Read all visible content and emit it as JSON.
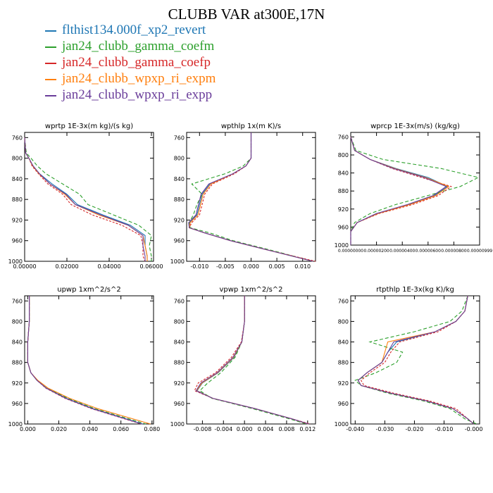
{
  "title": "CLUBB VAR at300E,17N",
  "legend": [
    {
      "label": "flthist134.000f_xp2_revert",
      "color": "#1f77b4"
    },
    {
      "label": "jan24_clubb_gamma_coefm",
      "color": "#2ca02c"
    },
    {
      "label": "jan24_clubb_gamma_coefp",
      "color": "#d62728"
    },
    {
      "label": "jan24_clubb_wpxp_ri_expm",
      "color": "#ff7f0e"
    },
    {
      "label": "jan24_clubb_wpxp_ri_expp",
      "color": "#6a3d9a"
    }
  ],
  "chart_data": [
    {
      "type": "line",
      "title": "wprtp   1E-3x(m kg)/(s kg)",
      "xlim": [
        0,
        0.061
      ],
      "ylim": [
        1000,
        750
      ],
      "xticks": [
        0,
        0.02,
        0.04,
        0.06
      ],
      "xtick_labels": [
        "0.00000",
        "0.02000",
        "0.04000",
        "0.06000"
      ],
      "yticks": [
        760,
        800,
        840,
        880,
        920,
        960,
        1000
      ],
      "ytick_labels": [
        "760",
        "800",
        "840",
        "880",
        "920",
        "960",
        "1000"
      ],
      "y": [
        760,
        790,
        800,
        815,
        830,
        850,
        870,
        890,
        910,
        930,
        950,
        970,
        990,
        1000
      ],
      "series": [
        {
          "values": [
            0,
            0.0005,
            0.002,
            0.004,
            0.007,
            0.013,
            0.02,
            0.025,
            0.037,
            0.05,
            0.057,
            0.057,
            0.058,
            0.058
          ]
        },
        {
          "values": [
            0,
            0.0008,
            0.003,
            0.006,
            0.01,
            0.018,
            0.026,
            0.03,
            0.042,
            0.054,
            0.06,
            0.059,
            0.06,
            0.06
          ]
        },
        {
          "values": [
            0,
            0.0005,
            0.002,
            0.0035,
            0.0065,
            0.011,
            0.018,
            0.022,
            0.032,
            0.046,
            0.055,
            0.056,
            0.056,
            0.057
          ]
        },
        {
          "values": [
            0,
            0.0005,
            0.002,
            0.0038,
            0.0068,
            0.012,
            0.019,
            0.024,
            0.035,
            0.049,
            0.056,
            0.057,
            0.058,
            0.058
          ]
        },
        {
          "values": [
            0,
            0.0005,
            0.002,
            0.004,
            0.007,
            0.012,
            0.0195,
            0.024,
            0.036,
            0.049,
            0.056,
            0.056,
            0.057,
            0.057
          ]
        }
      ]
    },
    {
      "type": "line",
      "title": "wpthlp   1x(m K)/s",
      "xlim": [
        -0.0125,
        0.0125
      ],
      "ylim": [
        1000,
        750
      ],
      "xticks": [
        -0.01,
        -0.005,
        0,
        0.005,
        0.01
      ],
      "xtick_labels": [
        "-0.010",
        "-0.005",
        "0.000",
        "0.005",
        "0.010"
      ],
      "yticks": [
        760,
        800,
        840,
        880,
        920,
        960,
        1000
      ],
      "ytick_labels": [
        "760",
        "800",
        "840",
        "880",
        "920",
        "960",
        "1000"
      ],
      "y": [
        750,
        800,
        815,
        830,
        850,
        870,
        890,
        910,
        925,
        935,
        945,
        960,
        980,
        1000
      ],
      "series": [
        {
          "values": [
            0,
            0,
            -0.001,
            -0.0035,
            -0.008,
            -0.0095,
            -0.01,
            -0.0105,
            -0.012,
            -0.012,
            -0.009,
            -0.004,
            0.004,
            0.012
          ]
        },
        {
          "values": [
            0,
            0,
            -0.0015,
            -0.005,
            -0.0115,
            -0.0095,
            -0.0105,
            -0.0112,
            -0.012,
            -0.0118,
            -0.008,
            -0.0035,
            0.0045,
            0.012
          ]
        },
        {
          "values": [
            0,
            0,
            -0.001,
            -0.0032,
            -0.0075,
            -0.009,
            -0.0095,
            -0.01,
            -0.0115,
            -0.012,
            -0.009,
            -0.004,
            0.004,
            0.0125
          ]
        },
        {
          "values": [
            0,
            0,
            -0.001,
            -0.0035,
            -0.0078,
            -0.0093,
            -0.0098,
            -0.0103,
            -0.0118,
            -0.012,
            -0.009,
            -0.004,
            0.004,
            0.012
          ]
        },
        {
          "values": [
            0,
            0,
            -0.001,
            -0.0035,
            -0.0082,
            -0.0097,
            -0.0102,
            -0.0107,
            -0.0121,
            -0.012,
            -0.009,
            -0.004,
            0.004,
            0.012
          ]
        }
      ]
    },
    {
      "type": "line",
      "title": "wprcp   1E-3x(m/s) (kg/kg)",
      "xlim": [
        0,
        1e-05
      ],
      "ylim": [
        1000,
        750
      ],
      "xtick_labels": [
        "0.00000000",
        "0.00000200",
        "0.00000400",
        "0.00000600",
        "0.00000800",
        "0.00000999"
      ],
      "yticks": [
        760,
        800,
        840,
        880,
        920,
        960,
        1000
      ],
      "ytick_labels": [
        "760",
        "800",
        "840",
        "880",
        "920",
        "960",
        "1000"
      ],
      "y": [
        760,
        790,
        810,
        830,
        850,
        870,
        890,
        910,
        930,
        950,
        970,
        1000
      ],
      "series": [
        {
          "values": [
            0,
            3e-07,
            1.5e-06,
            3.5e-06,
            6e-06,
            7.5e-06,
            6.5e-06,
            4.5e-06,
            2e-06,
            5e-07,
            0,
            0
          ]
        },
        {
          "values": [
            0,
            4e-07,
            2.5e-06,
            7e-06,
            9.9e-06,
            8.5e-06,
            6e-06,
            3.5e-06,
            1.5e-06,
            3e-07,
            0,
            0
          ]
        },
        {
          "values": [
            0,
            3e-07,
            1.5e-06,
            3.2e-06,
            5.5e-06,
            7.8e-06,
            6.8e-06,
            4.8e-06,
            2.2e-06,
            5e-07,
            0,
            0
          ]
        },
        {
          "values": [
            0,
            3e-07,
            1.5e-06,
            3.4e-06,
            5.8e-06,
            7.6e-06,
            6.6e-06,
            4.6e-06,
            2.1e-06,
            5e-07,
            0,
            0
          ]
        },
        {
          "values": [
            0,
            3e-07,
            1.5e-06,
            3.3e-06,
            5.7e-06,
            7.4e-06,
            6.4e-06,
            4.4e-06,
            2e-06,
            5e-07,
            0,
            0
          ]
        }
      ]
    },
    {
      "type": "line",
      "title": "upwp   1xm^2/s^2",
      "xlim": [
        -0.002,
        0.081
      ],
      "ylim": [
        1000,
        750
      ],
      "xticks": [
        0,
        0.02,
        0.04,
        0.06,
        0.08
      ],
      "xtick_labels": [
        "0.000",
        "0.020",
        "0.040",
        "0.060",
        "0.080"
      ],
      "yticks": [
        760,
        800,
        840,
        880,
        920,
        960,
        1000
      ],
      "ytick_labels": [
        "760",
        "800",
        "840",
        "880",
        "920",
        "960",
        "1000"
      ],
      "y": [
        750,
        800,
        840,
        880,
        900,
        915,
        930,
        950,
        970,
        1000
      ],
      "series": [
        {
          "values": [
            0.001,
            0.001,
            0,
            0,
            0.002,
            0.006,
            0.012,
            0.025,
            0.042,
            0.074
          ]
        },
        {
          "values": [
            0.001,
            0.001,
            0,
            0,
            0.002,
            0.006,
            0.012,
            0.026,
            0.043,
            0.076
          ]
        },
        {
          "values": [
            0.001,
            0.001,
            0,
            0,
            0.002,
            0.006,
            0.0115,
            0.024,
            0.041,
            0.073
          ]
        },
        {
          "values": [
            0.001,
            0.001,
            0,
            0,
            0.002,
            0.0065,
            0.013,
            0.027,
            0.045,
            0.079
          ]
        },
        {
          "values": [
            0.001,
            0.001,
            0,
            0,
            0.002,
            0.006,
            0.0118,
            0.0245,
            0.0415,
            0.0735
          ]
        }
      ]
    },
    {
      "type": "line",
      "title": "vpwp   1xm^2/s^2",
      "xlim": [
        -0.011,
        0.0135
      ],
      "ylim": [
        1000,
        750
      ],
      "xticks": [
        -0.008,
        -0.004,
        0,
        0.004,
        0.008,
        0.012
      ],
      "xtick_labels": [
        "-0.008",
        "-0.004",
        "0.000",
        "0.004",
        "0.008",
        "0.012"
      ],
      "yticks": [
        760,
        800,
        840,
        880,
        920,
        960,
        1000
      ],
      "ytick_labels": [
        "760",
        "800",
        "840",
        "880",
        "920",
        "960",
        "1000"
      ],
      "y": [
        750,
        800,
        840,
        870,
        900,
        920,
        935,
        950,
        970,
        990,
        1000
      ],
      "series": [
        {
          "values": [
            0,
            0,
            -0.0005,
            -0.002,
            -0.005,
            -0.008,
            -0.009,
            -0.006,
            0.002,
            0.009,
            0.012
          ]
        },
        {
          "values": [
            0,
            0,
            -0.0005,
            -0.0018,
            -0.0045,
            -0.007,
            -0.0085,
            -0.0062,
            0.0015,
            0.0085,
            0.0118
          ]
        },
        {
          "values": [
            0,
            0,
            -0.0006,
            -0.0025,
            -0.0055,
            -0.0088,
            -0.0095,
            -0.006,
            0.002,
            0.009,
            0.0125
          ]
        },
        {
          "values": [
            0,
            0,
            -0.0005,
            -0.0021,
            -0.0051,
            -0.0081,
            -0.0091,
            -0.006,
            0.002,
            0.009,
            0.0121
          ]
        },
        {
          "values": [
            0,
            0,
            -0.0005,
            -0.0022,
            -0.0052,
            -0.0083,
            -0.0092,
            -0.006,
            0.002,
            0.009,
            0.0122
          ]
        }
      ]
    },
    {
      "type": "line",
      "title": "rtpthlp   1E-3x(kg K)/kg",
      "xlim": [
        -0.0415,
        0.002
      ],
      "ylim": [
        1000,
        750
      ],
      "xticks": [
        -0.04,
        -0.03,
        -0.02,
        -0.01,
        0
      ],
      "xtick_labels": [
        "-0.040",
        "-0.030",
        "-0.020",
        "-0.010",
        "-0.000"
      ],
      "yticks": [
        760,
        800,
        840,
        880,
        920,
        960,
        1000
      ],
      "ytick_labels": [
        "760",
        "800",
        "840",
        "880",
        "920",
        "960",
        "1000"
      ],
      "y": [
        750,
        780,
        800,
        820,
        840,
        860,
        880,
        900,
        915,
        925,
        940,
        955,
        970,
        990,
        1000
      ],
      "series": [
        {
          "values": [
            -0.002,
            -0.003,
            -0.006,
            -0.013,
            -0.026,
            -0.029,
            -0.031,
            -0.036,
            -0.039,
            -0.038,
            -0.028,
            -0.016,
            -0.007,
            -0.002,
            0
          ]
        },
        {
          "values": [
            -0.002,
            -0.004,
            -0.008,
            -0.02,
            -0.035,
            -0.024,
            -0.026,
            -0.033,
            -0.04,
            -0.038,
            -0.029,
            -0.017,
            -0.008,
            -0.003,
            0.001
          ]
        },
        {
          "values": [
            -0.002,
            -0.003,
            -0.006,
            -0.012,
            -0.025,
            -0.028,
            -0.03,
            -0.035,
            -0.038,
            -0.037,
            -0.027,
            -0.015,
            -0.006,
            -0.002,
            0
          ]
        },
        {
          "values": [
            -0.002,
            -0.003,
            -0.006,
            -0.013,
            -0.029,
            -0.03,
            -0.031,
            -0.036,
            -0.039,
            -0.038,
            -0.028,
            -0.016,
            -0.007,
            -0.002,
            0
          ]
        },
        {
          "values": [
            -0.002,
            -0.003,
            -0.006,
            -0.013,
            -0.027,
            -0.029,
            -0.031,
            -0.036,
            -0.039,
            -0.038,
            -0.028,
            -0.016,
            -0.007,
            -0.002,
            0
          ]
        }
      ]
    }
  ]
}
